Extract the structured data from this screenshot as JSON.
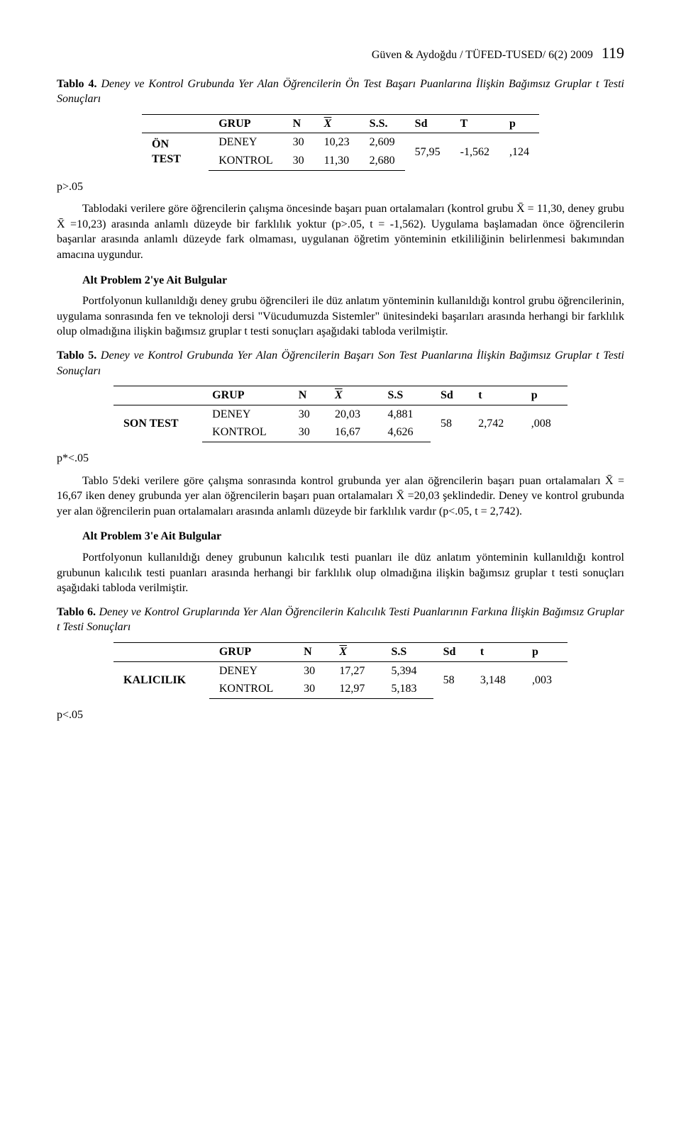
{
  "header": {
    "citation": "Güven & Aydoğdu / TÜFED-TUSED/ 6(2) 2009",
    "page": "119"
  },
  "tablo4": {
    "title_label": "Tablo 4.",
    "title_rest": " Deney ve Kontrol Grubunda Yer Alan Öğrencilerin Ön Test Başarı Puanlarına İlişkin Bağımsız Gruplar t Testi Sonuçları",
    "cols": {
      "c1": "GRUP",
      "c2": "N",
      "c3": "X",
      "c4": "S.S.",
      "c5": "Sd",
      "c6": "T",
      "c7": "p"
    },
    "rowlabel": "ÖN TEST",
    "deney": {
      "grup": "DENEY",
      "n": "30",
      "x": "10,23",
      "ss": "2,609"
    },
    "kontrol": {
      "grup": "KONTROL",
      "n": "30",
      "x": "11,30",
      "ss": "2,680"
    },
    "sd": "57,95",
    "t": "-1,562",
    "p": ",124",
    "note": "p>.05"
  },
  "para1": "Tablodaki verilere göre öğrencilerin çalışma öncesinde başarı puan ortalamaları (kontrol grubu X̄ = 11,30, deney grubu X̄ =10,23) arasında anlamlı düzeyde bir farklılık yoktur (p>.05, t = -1,562). Uygulama başlamadan önce öğrencilerin başarılar arasında anlamlı düzeyde fark olmaması, uygulanan öğretim yönteminin etkililiğinin belirlenmesi bakımından amacına uygundur.",
  "alt2_head": "Alt Problem 2'ye Ait Bulgular",
  "para2": "Portfolyonun kullanıldığı deney grubu öğrencileri ile düz anlatım yönteminin kullanıldığı kontrol grubu öğrencilerinin, uygulama sonrasında fen ve teknoloji dersi \"Vücudumuzda Sistemler\" ünitesindeki başarıları arasında herhangi bir farklılık olup olmadığına ilişkin bağımsız gruplar t testi sonuçları aşağıdaki tabloda verilmiştir.",
  "tablo5": {
    "title_label": "Tablo 5.",
    "title_rest": " Deney ve Kontrol Grubunda Yer Alan Öğrencilerin Başarı Son Test Puanlarına İlişkin Bağımsız Gruplar t Testi Sonuçları",
    "cols": {
      "c1": "GRUP",
      "c2": "N",
      "c3": "X",
      "c4": "S.S",
      "c5": "Sd",
      "c6": "t",
      "c7": "p"
    },
    "rowlabel": "SON TEST",
    "deney": {
      "grup": "DENEY",
      "n": "30",
      "x": "20,03",
      "ss": "4,881"
    },
    "kontrol": {
      "grup": "KONTROL",
      "n": "30",
      "x": "16,67",
      "ss": "4,626"
    },
    "sd": "58",
    "t": "2,742",
    "p": ",008",
    "note": "p*<.05"
  },
  "para3": "Tablo 5'deki verilere göre çalışma sonrasında kontrol grubunda yer alan öğrencilerin başarı puan ortalamaları X̄ = 16,67 iken deney grubunda yer alan öğrencilerin başarı puan ortalamaları X̄ =20,03 şeklindedir. Deney ve kontrol grubunda yer alan öğrencilerin puan ortalamaları arasında anlamlı düzeyde bir farklılık vardır (p<.05, t = 2,742).",
  "alt3_head": "Alt Problem 3'e Ait Bulgular",
  "para4": "Portfolyonun kullanıldığı deney grubunun kalıcılık testi puanları ile düz anlatım yönteminin kullanıldığı kontrol grubunun kalıcılık testi puanları arasında herhangi bir farklılık olup olmadığına ilişkin bağımsız gruplar t testi sonuçları aşağıdaki tabloda verilmiştir.",
  "tablo6": {
    "title_label": "Tablo 6.",
    "title_rest": "  Deney ve Kontrol Gruplarında Yer Alan Öğrencilerin Kalıcılık Testi Puanlarının Farkına İlişkin Bağımsız Gruplar t Testi Sonuçları",
    "cols": {
      "c1": "GRUP",
      "c2": "N",
      "c3": "X",
      "c4": "S.S",
      "c5": "Sd",
      "c6": "t",
      "c7": "p"
    },
    "rowlabel": "KALICILIK",
    "deney": {
      "grup": "DENEY",
      "n": "30",
      "x": "17,27",
      "ss": "5,394"
    },
    "kontrol": {
      "grup": "KONTROL",
      "n": "30",
      "x": "12,97",
      "ss": "5,183"
    },
    "sd": "58",
    "t": "3,148",
    "p": ",003",
    "note": "p<.05"
  }
}
